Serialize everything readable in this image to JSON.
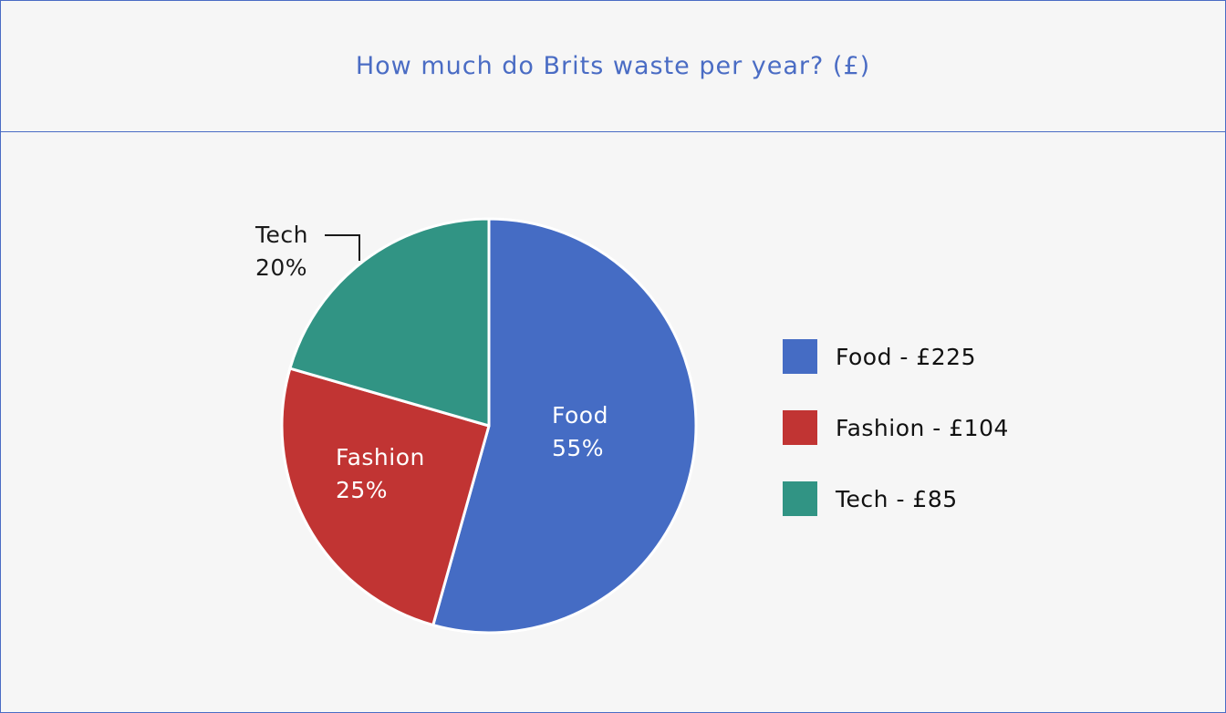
{
  "chart_data": {
    "type": "pie",
    "title": "How much do Brits waste per year? (£)",
    "slices": [
      {
        "name": "Food",
        "value": 225,
        "percent_label": "55%",
        "legend": "Food - £225",
        "color": "#456cc4"
      },
      {
        "name": "Fashion",
        "value": 104,
        "percent_label": "25%",
        "legend": "Fashion - £104",
        "color": "#c13433"
      },
      {
        "name": "Tech",
        "value": 85,
        "percent_label": "20%",
        "legend": "Tech - £85",
        "color": "#319484"
      }
    ],
    "legend_position": "right"
  }
}
